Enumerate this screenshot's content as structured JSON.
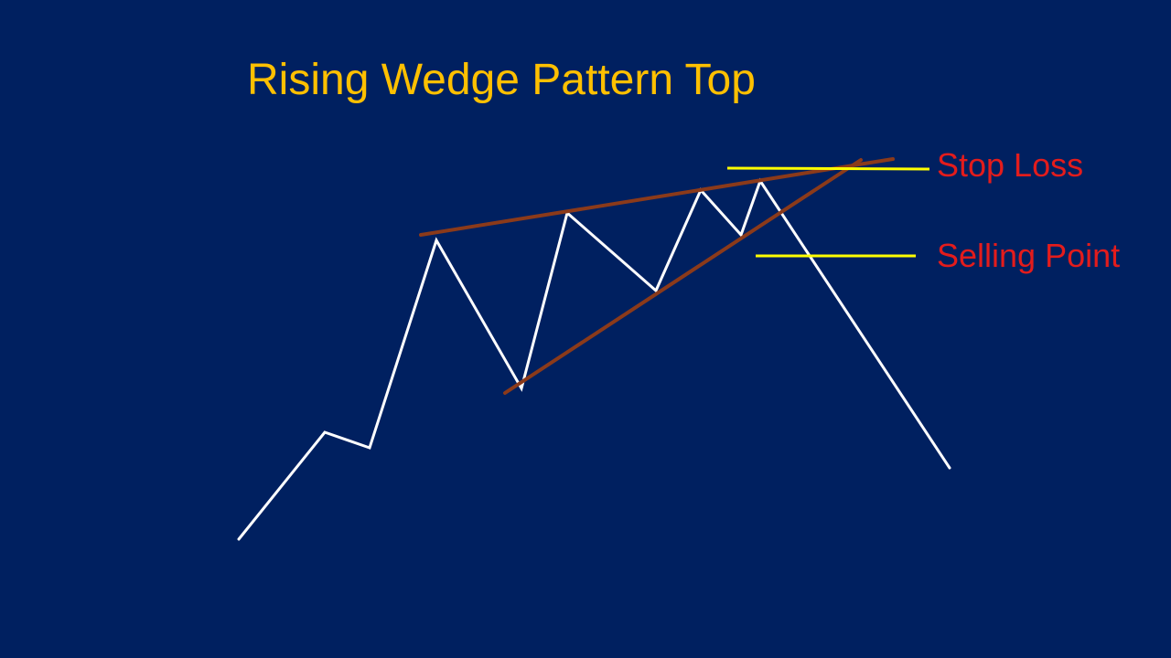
{
  "title": "Rising Wedge Pattern Top",
  "labels": {
    "stop_loss": "Stop Loss",
    "selling_point": "Selling Point"
  },
  "colors": {
    "background": "#002060",
    "title": "#FFC000",
    "label": "#E31C1C",
    "price_line": "#FFFFFF",
    "trendline": "#8B3A1A",
    "level_line": "#FFFF00"
  }
}
